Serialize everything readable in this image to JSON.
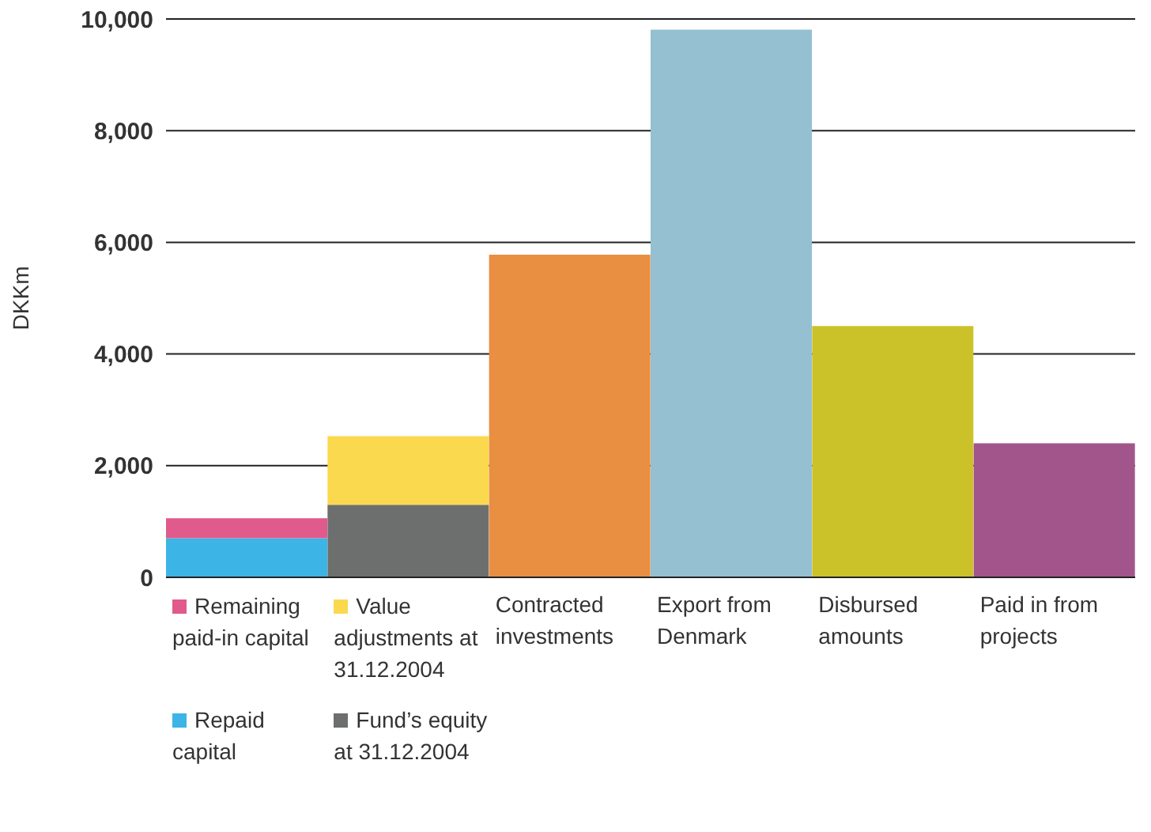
{
  "chart_data": {
    "type": "bar",
    "stacked": true,
    "ylabel": "DKKm",
    "categories": [
      null,
      null,
      "Contracted investments",
      "Export from Denmark",
      "Disbursed amounts",
      "Paid in from projects"
    ],
    "series": [
      {
        "name": "Repaid capital",
        "color": "#3cb4e6",
        "values": [
          700,
          null,
          null,
          null,
          null,
          null
        ]
      },
      {
        "name": "Remaining paid-in capital",
        "color": "#e05a8c",
        "values": [
          360,
          null,
          null,
          null,
          null,
          null
        ]
      },
      {
        "name": "Fund’s equity at 31.12.2004",
        "color": "#6d6f6f",
        "values": [
          null,
          1300,
          null,
          null,
          null,
          null
        ]
      },
      {
        "name": "Value adjustments at 31.12.2004",
        "color": "#fbd94e",
        "values": [
          null,
          1230,
          null,
          null,
          null,
          null
        ]
      },
      {
        "colors": [
          "#e88f42",
          "#e88f42",
          "#e88f42",
          "#94c0d2",
          "#cbc22a",
          "#a2558b"
        ],
        "values": [
          null,
          null,
          5780,
          9810,
          4500,
          2400
        ]
      }
    ],
    "ylim": [
      0,
      10000
    ],
    "yticks": [
      0,
      {
        "value": 2000,
        "label": "2,000"
      },
      {
        "value": 4000,
        "label": "4,000"
      },
      {
        "value": 6000,
        "label": "6,000"
      },
      {
        "value": 8000,
        "label": "8,000"
      },
      {
        "value": 10000,
        "label": "10,000"
      }
    ],
    "grid": "y",
    "legend": "bottom"
  }
}
